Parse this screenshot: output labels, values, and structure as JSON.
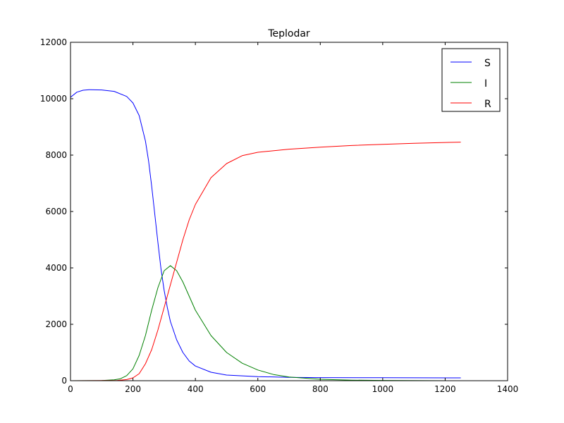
{
  "chart_data": {
    "type": "line",
    "title": "Teplodar",
    "xlabel": "",
    "ylabel": "",
    "xlim": [
      0,
      1400
    ],
    "ylim": [
      0,
      12000
    ],
    "xticks": [
      0,
      200,
      400,
      600,
      800,
      1000,
      1200,
      1400
    ],
    "yticks": [
      0,
      2000,
      4000,
      6000,
      8000,
      10000,
      12000
    ],
    "grid": false,
    "legend_position": "top-right",
    "series": [
      {
        "name": "S",
        "color": "#0000ff",
        "x": [
          0,
          20,
          40,
          60,
          100,
          140,
          180,
          200,
          220,
          240,
          250,
          260,
          270,
          280,
          290,
          300,
          310,
          320,
          340,
          360,
          380,
          400,
          450,
          500,
          600,
          700,
          800,
          1000,
          1250
        ],
        "y": [
          10050,
          10230,
          10300,
          10320,
          10310,
          10260,
          10080,
          9850,
          9400,
          8500,
          7800,
          6900,
          5900,
          4900,
          3950,
          3200,
          2600,
          2100,
          1450,
          1000,
          700,
          520,
          300,
          200,
          145,
          120,
          110,
          105,
          100
        ]
      },
      {
        "name": "I",
        "color": "#008000",
        "x": [
          0,
          100,
          140,
          160,
          180,
          200,
          220,
          240,
          260,
          280,
          300,
          320,
          340,
          360,
          380,
          400,
          450,
          500,
          550,
          600,
          650,
          700,
          800,
          900,
          1000,
          1250
        ],
        "y": [
          0,
          5,
          30,
          70,
          180,
          420,
          900,
          1600,
          2500,
          3300,
          3900,
          4080,
          3900,
          3500,
          3000,
          2500,
          1600,
          1000,
          620,
          380,
          220,
          130,
          50,
          20,
          8,
          0
        ]
      },
      {
        "name": "R",
        "color": "#ff0000",
        "x": [
          0,
          150,
          180,
          200,
          220,
          240,
          260,
          280,
          300,
          320,
          340,
          360,
          380,
          400,
          450,
          500,
          550,
          600,
          700,
          800,
          900,
          1000,
          1100,
          1250
        ],
        "y": [
          0,
          10,
          40,
          100,
          250,
          600,
          1100,
          1800,
          2600,
          3400,
          4200,
          5000,
          5700,
          6250,
          7200,
          7700,
          7980,
          8100,
          8210,
          8280,
          8340,
          8380,
          8420,
          8460
        ]
      }
    ]
  }
}
